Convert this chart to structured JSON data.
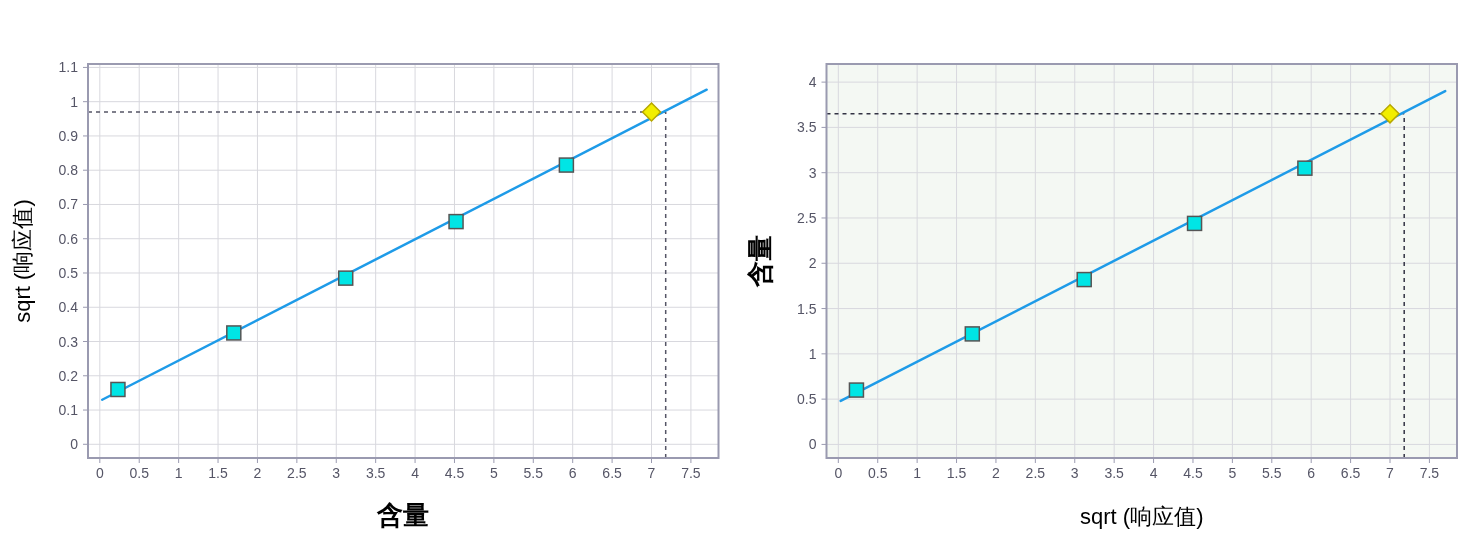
{
  "chart_data": [
    {
      "type": "scatter",
      "xlabel": "含量",
      "ylabel": "sqrt (响应值)",
      "xlim": [
        -0.15,
        7.85
      ],
      "ylim": [
        -0.04,
        1.11
      ],
      "xticks": [
        0,
        0.5,
        1,
        1.5,
        2,
        2.5,
        3,
        3.5,
        4,
        4.5,
        5,
        5.5,
        6,
        6.5,
        7,
        7.5
      ],
      "yticks": [
        0,
        0.1,
        0.2,
        0.3,
        0.4,
        0.5,
        0.6,
        0.7,
        0.8,
        0.9,
        1,
        1.1
      ],
      "grid": true,
      "series": [
        {
          "type": "line",
          "x": [
            0.03,
            7.7
          ],
          "values": [
            0.13,
            1.035
          ],
          "color": "#1e9be8"
        },
        {
          "x": [
            0.23,
            1.7,
            3.12,
            4.52,
            5.92
          ],
          "values": [
            0.16,
            0.325,
            0.485,
            0.65,
            0.815
          ],
          "color": "#00e5e5",
          "marker": "square"
        },
        {
          "x": [
            7.0
          ],
          "values": [
            0.97
          ],
          "color": "#f2ee00",
          "marker": "diamond"
        }
      ],
      "ref_lines": [
        {
          "axis": "y",
          "value": 0.97,
          "color": "#555566",
          "line_style": "dashed"
        },
        {
          "axis": "x",
          "value": 7.18,
          "color": "#555566",
          "line_style": "dashed"
        }
      ]
    },
    {
      "type": "scatter",
      "xlabel": "sqrt (响应值)",
      "ylabel": "含量",
      "xlim": [
        -0.15,
        7.85
      ],
      "ylim": [
        -0.15,
        4.2
      ],
      "xticks": [
        0,
        0.5,
        1,
        1.5,
        2,
        2.5,
        3,
        3.5,
        4,
        4.5,
        5,
        5.5,
        6,
        6.5,
        7,
        7.5
      ],
      "yticks": [
        0,
        0.5,
        1,
        1.5,
        2,
        2.5,
        3,
        3.5,
        4
      ],
      "grid": true,
      "series": [
        {
          "type": "line",
          "x": [
            0.03,
            7.7
          ],
          "values": [
            0.48,
            3.9
          ],
          "color": "#1e9be8"
        },
        {
          "x": [
            0.23,
            1.7,
            3.12,
            4.52,
            5.92
          ],
          "values": [
            0.6,
            1.22,
            1.82,
            2.44,
            3.05
          ],
          "color": "#00e5e5",
          "marker": "square"
        },
        {
          "x": [
            7.0
          ],
          "values": [
            3.65
          ],
          "color": "#f2ee00",
          "marker": "diamond"
        }
      ],
      "ref_lines": [
        {
          "axis": "y",
          "value": 3.65,
          "color": "#333344",
          "line_style": "dashed"
        },
        {
          "axis": "x",
          "value": 7.18,
          "color": "#333344",
          "line_style": "dashed"
        }
      ]
    }
  ]
}
